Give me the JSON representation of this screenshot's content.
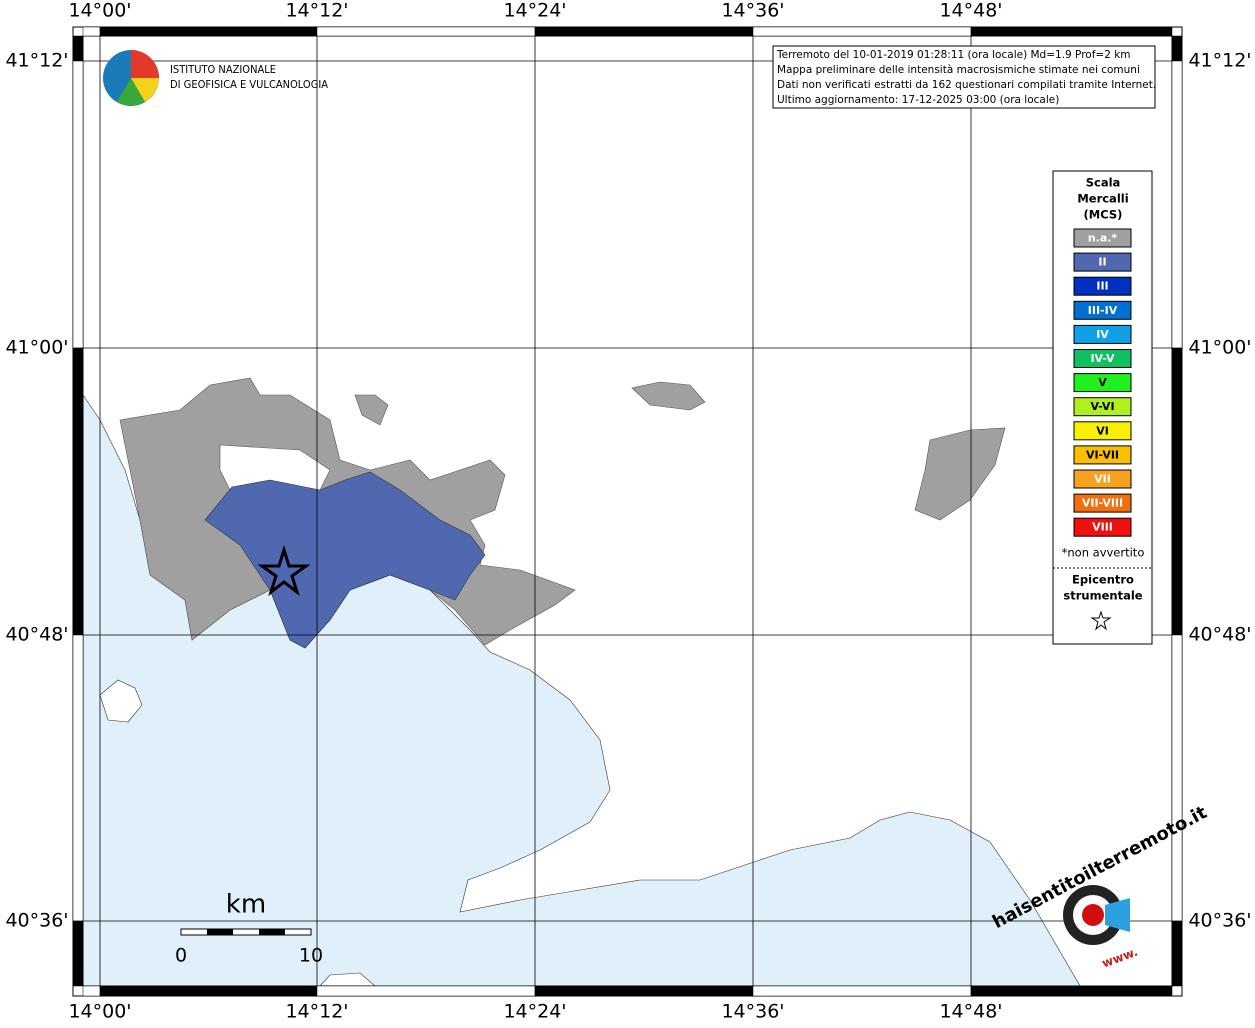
{
  "map": {
    "lon_labels": [
      "14°00'",
      "14°12'",
      "14°24'",
      "14°36'",
      "14°48'"
    ],
    "lat_labels": [
      "41°12'",
      "41°00'",
      "40°48'",
      "40°36'"
    ]
  },
  "logo": {
    "line1": "ISTITUTO NAZIONALE",
    "line2": "DI GEOFISICA E VULCANOLOGIA"
  },
  "info": {
    "lines": [
      "Terremoto del 10-01-2019 01:28:11 (ora locale) Md=1.9 Prof=2 km",
      "Mappa preliminare delle intensità macrosismiche stimate nei comuni",
      "Dati non verificati estratti da 162 questionari compilati tramite Internet.",
      "Ultimo aggiornamento: 17-12-2025 03:00 (ora locale)"
    ]
  },
  "legend": {
    "title_lines": [
      "Scala",
      "Mercalli",
      "(MCS)"
    ],
    "items": [
      {
        "label": "n.a.*",
        "color": "#a0a0a0"
      },
      {
        "label": "II",
        "color": "#5068b0"
      },
      {
        "label": "III",
        "color": "#0030c0"
      },
      {
        "label": "III-IV",
        "color": "#0070d0"
      },
      {
        "label": "IV",
        "color": "#10a0e8"
      },
      {
        "label": "IV-V",
        "color": "#10c060"
      },
      {
        "label": "V",
        "color": "#20f020"
      },
      {
        "label": "V-VI",
        "color": "#b0f020"
      },
      {
        "label": "VI",
        "color": "#f8f000"
      },
      {
        "label": "VI-VII",
        "color": "#f8c000"
      },
      {
        "label": "VII",
        "color": "#f8a020"
      },
      {
        "label": "VII-VIII",
        "color": "#f07010"
      },
      {
        "label": "VIII",
        "color": "#f01010"
      }
    ],
    "note": "*non avvertito",
    "epicenter_lines": [
      "Epicentro",
      "strumentale"
    ]
  },
  "scale_bar": {
    "unit": "km",
    "start": "0",
    "end": "10"
  },
  "site_logo": {
    "text": "haisentitoilterremoto.it",
    "prefix": "www."
  }
}
